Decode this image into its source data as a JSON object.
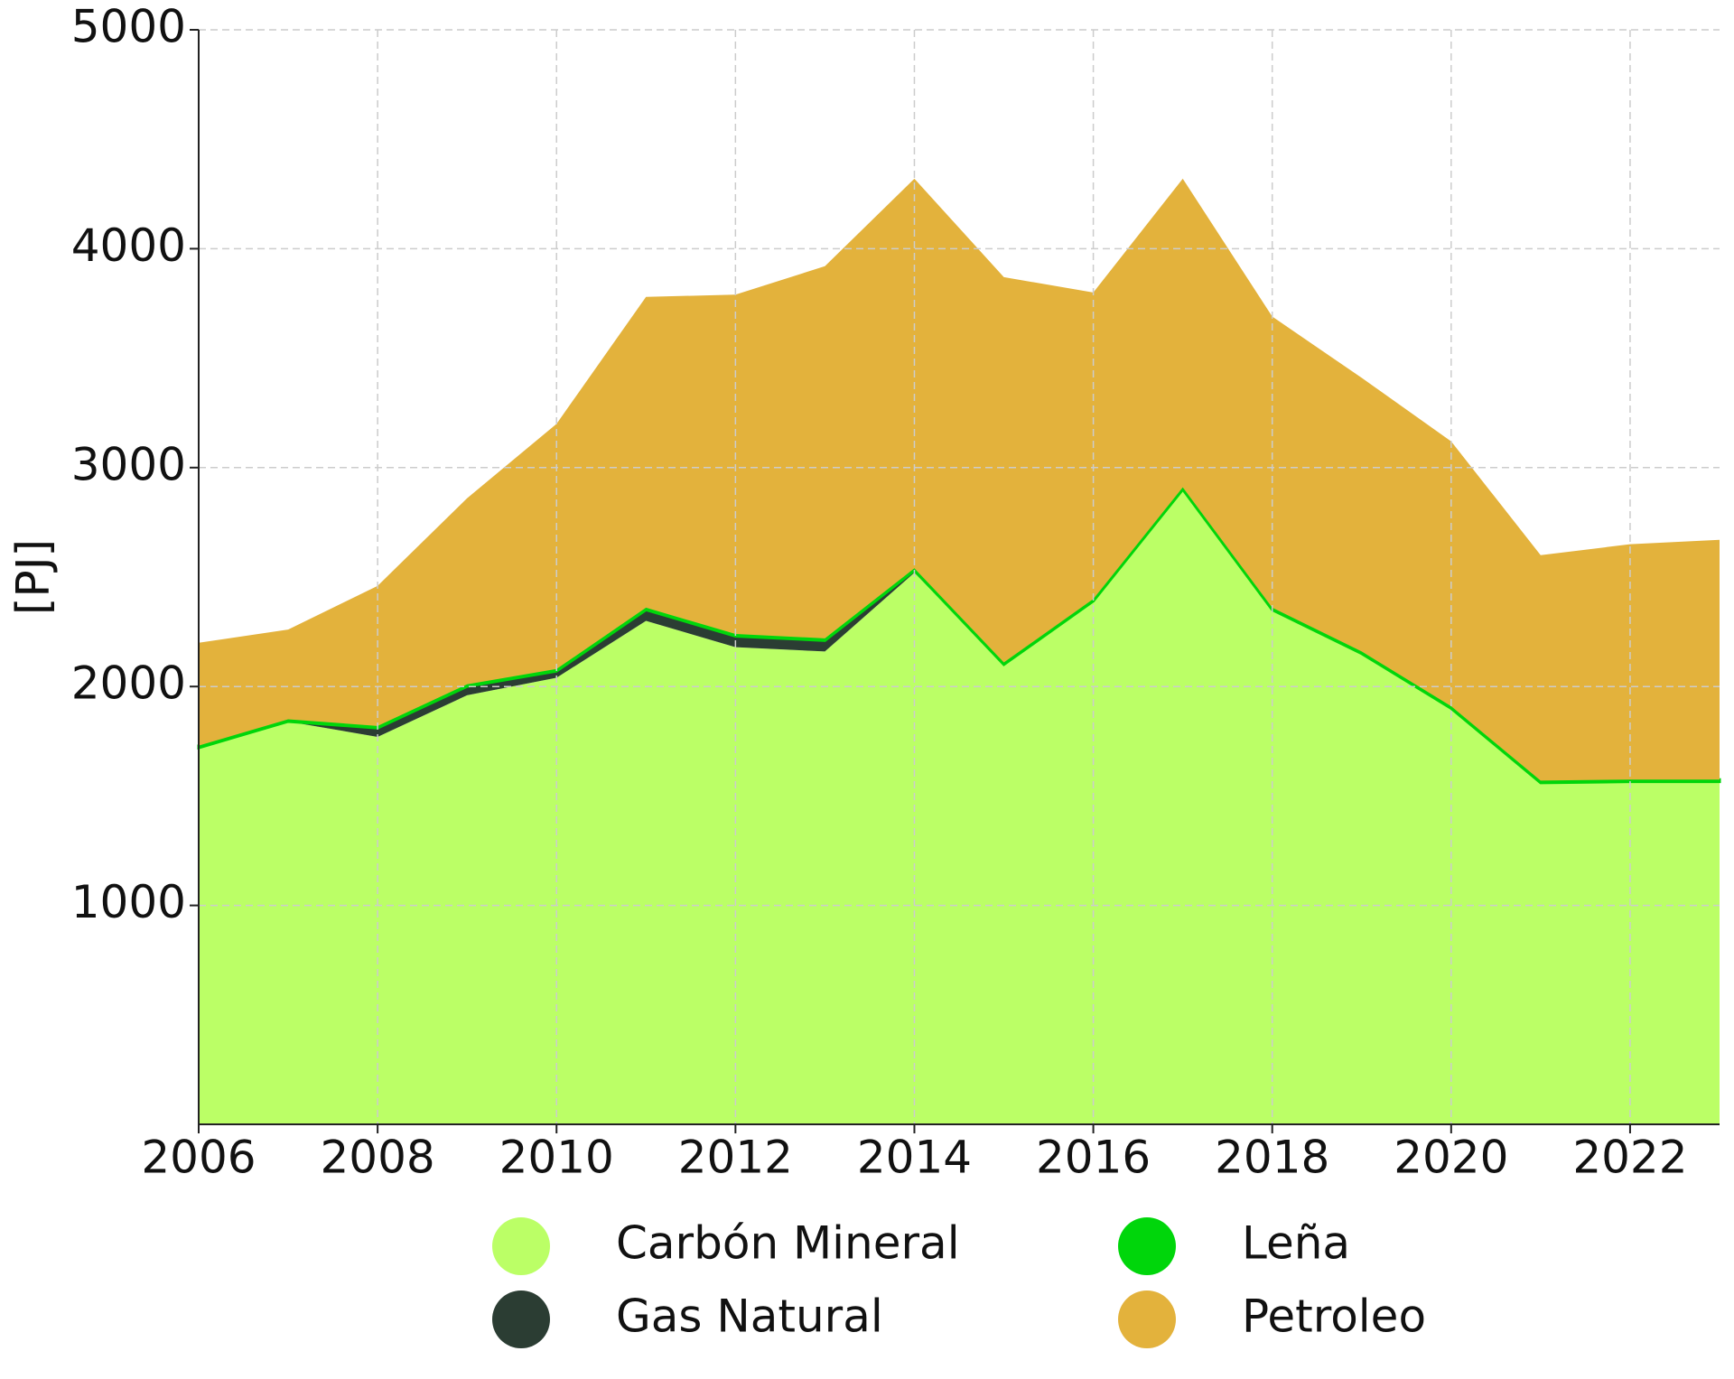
{
  "chart_data": {
    "type": "stacked_area",
    "y_label": "[PJ]",
    "x": [
      2006,
      2007,
      2008,
      2009,
      2010,
      2011,
      2012,
      2013,
      2014,
      2015,
      2016,
      2017,
      2018,
      2019,
      2020,
      2021,
      2022,
      2023
    ],
    "series": [
      {
        "name": "Carbón Mineral",
        "color": "#bbff66",
        "values": [
          1720,
          1840,
          1770,
          1960,
          2040,
          2300,
          2180,
          2160,
          2520,
          2100,
          2390,
          2900,
          2350,
          2150,
          1900,
          1560,
          1565,
          1565
        ]
      },
      {
        "name": "Gas Natural",
        "color": "#2b3d33",
        "values": [
          0,
          0,
          40,
          40,
          30,
          50,
          50,
          50,
          10,
          0,
          0,
          0,
          0,
          0,
          0,
          0,
          0,
          0
        ]
      },
      {
        "name": "Leña",
        "color": "#00d60b",
        "values": [
          10,
          10,
          10,
          10,
          10,
          10,
          10,
          10,
          10,
          10,
          10,
          10,
          10,
          10,
          10,
          10,
          10,
          10
        ]
      },
      {
        "name": "Petroleo",
        "color": "#e3b23c",
        "values": [
          470,
          410,
          640,
          850,
          1120,
          1420,
          1550,
          1700,
          1780,
          1760,
          1400,
          1410,
          1330,
          1250,
          1210,
          1030,
          1075,
          1095
        ]
      }
    ],
    "xlim": [
      2006,
      2023
    ],
    "xticks": [
      2006,
      2008,
      2010,
      2012,
      2014,
      2016,
      2018,
      2020,
      2022
    ],
    "ylim": [
      0,
      5000
    ],
    "yticks": [
      1000,
      2000,
      3000,
      4000,
      5000
    ],
    "grid": true
  }
}
